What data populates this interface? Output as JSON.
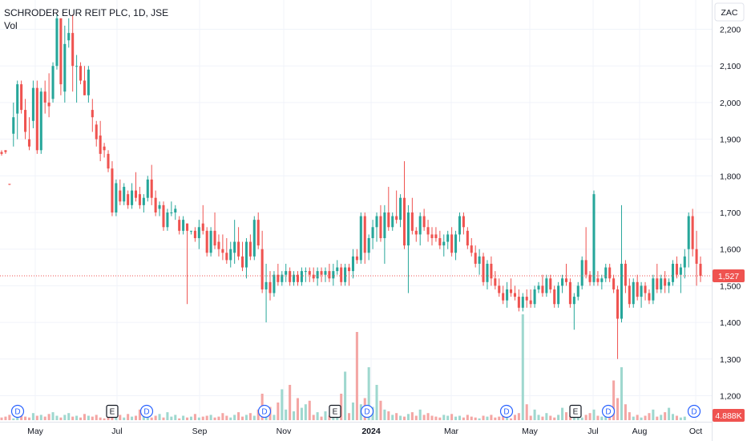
{
  "header": {
    "title": "SCHRODER EUR REIT PLC, 1D, JSE",
    "indicator": "Vol",
    "currency": "ZAC"
  },
  "price_scale": {
    "last_price_label": "1,527",
    "volume_label": "4.888K",
    "colors": {
      "up": "#26a69a",
      "down": "#ef5350",
      "vol_up": "#9fd8cf",
      "vol_down": "#f4a6a4",
      "price_tag": "#ef5350",
      "event_marker": "#2962ff"
    }
  },
  "chart_data": {
    "type": "candlestick",
    "title": "SCHRODER EUR REIT PLC, 1D, JSE",
    "ylabel": "ZAC",
    "ylim": [
      1120,
      2280
    ],
    "yticks": [
      {
        "value": 1200,
        "label": "1,200"
      },
      {
        "value": 1300,
        "label": "1,300"
      },
      {
        "value": 1400,
        "label": "1,400"
      },
      {
        "value": 1500,
        "label": "1,500"
      },
      {
        "value": 1600,
        "label": "1,600"
      },
      {
        "value": 1700,
        "label": "1,700"
      },
      {
        "value": 1800,
        "label": "1,800"
      },
      {
        "value": 1900,
        "label": "1,900"
      },
      {
        "value": 2000,
        "label": "2,000"
      },
      {
        "value": 2100,
        "label": "2,100"
      },
      {
        "value": 2200,
        "label": "2,200"
      }
    ],
    "xticks": [
      {
        "label": "May",
        "bold": false
      },
      {
        "label": "Jul",
        "bold": false
      },
      {
        "label": "Sep",
        "bold": false
      },
      {
        "label": "Nov",
        "bold": false
      },
      {
        "label": "2024",
        "bold": true
      },
      {
        "label": "Mar",
        "bold": false
      },
      {
        "label": "May",
        "bold": false
      },
      {
        "label": "Jul",
        "bold": false
      },
      {
        "label": "Aug",
        "bold": false
      },
      {
        "label": "Oct",
        "bold": false
      }
    ],
    "last_price": 1527,
    "last_volume_label": "4.888K",
    "events": [
      {
        "label": "D",
        "type": "dividend"
      },
      {
        "label": "E",
        "type": "earnings"
      },
      {
        "label": "D",
        "type": "dividend"
      },
      {
        "label": "D",
        "type": "dividend"
      },
      {
        "label": "E",
        "type": "earnings"
      },
      {
        "label": "D",
        "type": "dividend"
      },
      {
        "label": "D",
        "type": "dividend"
      },
      {
        "label": "E",
        "type": "earnings"
      },
      {
        "label": "D",
        "type": "dividend"
      },
      {
        "label": "D",
        "type": "dividend"
      }
    ],
    "candles": [
      [
        1865,
        1870,
        1855,
        1860
      ],
      [
        1870,
        1870,
        1860,
        1865
      ],
      [
        1778,
        1778,
        1775,
        1776
      ],
      [
        1915,
        2000,
        1880,
        1960
      ],
      [
        1970,
        2060,
        1900,
        2050
      ],
      [
        2050,
        2060,
        1970,
        1980
      ],
      [
        1980,
        2010,
        1900,
        1920
      ],
      [
        1900,
        1960,
        1870,
        1880
      ],
      [
        1950,
        2060,
        1930,
        2040
      ],
      [
        2040,
        2060,
        1860,
        1870
      ],
      [
        1870,
        2040,
        1860,
        2030
      ],
      [
        2030,
        2060,
        1970,
        2000
      ],
      [
        2000,
        2080,
        1960,
        1990
      ],
      [
        2010,
        2110,
        2000,
        2100
      ],
      [
        2100,
        2240,
        2090,
        2230
      ],
      [
        2230,
        2230,
        2020,
        2050
      ],
      [
        2030,
        2210,
        2000,
        2160
      ],
      [
        2170,
        2230,
        2150,
        2190
      ],
      [
        2190,
        2240,
        2030,
        2100
      ],
      [
        2100,
        2130,
        2000,
        2100
      ],
      [
        2100,
        2110,
        2050,
        2060
      ],
      [
        2060,
        2100,
        2020,
        2020
      ],
      [
        2020,
        2100,
        2000,
        2090
      ],
      [
        1980,
        2010,
        1920,
        1960
      ],
      [
        1940,
        1950,
        1880,
        1900
      ],
      [
        1910,
        1950,
        1840,
        1860
      ],
      [
        1880,
        1890,
        1850,
        1870
      ],
      [
        1860,
        1870,
        1810,
        1820
      ],
      [
        1820,
        1840,
        1690,
        1700
      ],
      [
        1700,
        1790,
        1690,
        1780
      ],
      [
        1760,
        1790,
        1720,
        1730
      ],
      [
        1730,
        1780,
        1720,
        1770
      ],
      [
        1750,
        1760,
        1710,
        1720
      ],
      [
        1720,
        1780,
        1710,
        1760
      ],
      [
        1760,
        1810,
        1730,
        1740
      ],
      [
        1750,
        1770,
        1710,
        1720
      ],
      [
        1720,
        1750,
        1700,
        1740
      ],
      [
        1740,
        1800,
        1730,
        1790
      ],
      [
        1790,
        1830,
        1720,
        1740
      ],
      [
        1740,
        1760,
        1690,
        1700
      ],
      [
        1710,
        1730,
        1690,
        1720
      ],
      [
        1720,
        1730,
        1650,
        1660
      ],
      [
        1660,
        1710,
        1650,
        1700
      ],
      [
        1700,
        1730,
        1690,
        1700
      ],
      [
        1700,
        1720,
        1680,
        1710
      ],
      [
        1680,
        1690,
        1640,
        1650
      ],
      [
        1650,
        1690,
        1640,
        1680
      ],
      [
        1670,
        1670,
        1450,
        1650
      ],
      [
        1650,
        1650,
        1640,
        1650
      ],
      [
        1650,
        1660,
        1620,
        1630
      ],
      [
        1630,
        1680,
        1600,
        1660
      ],
      [
        1670,
        1720,
        1640,
        1650
      ],
      [
        1650,
        1660,
        1580,
        1590
      ],
      [
        1590,
        1660,
        1580,
        1650
      ],
      [
        1650,
        1700,
        1600,
        1610
      ],
      [
        1620,
        1640,
        1580,
        1600
      ],
      [
        1600,
        1640,
        1570,
        1590
      ],
      [
        1590,
        1630,
        1560,
        1570
      ],
      [
        1570,
        1620,
        1550,
        1600
      ],
      [
        1590,
        1680,
        1560,
        1620
      ],
      [
        1620,
        1660,
        1570,
        1580
      ],
      [
        1580,
        1620,
        1540,
        1550
      ],
      [
        1550,
        1630,
        1520,
        1620
      ],
      [
        1620,
        1640,
        1570,
        1580
      ],
      [
        1580,
        1690,
        1570,
        1680
      ],
      [
        1680,
        1700,
        1600,
        1610
      ],
      [
        1600,
        1650,
        1480,
        1490
      ],
      [
        1490,
        1560,
        1400,
        1510
      ],
      [
        1510,
        1540,
        1460,
        1480
      ],
      [
        1480,
        1540,
        1470,
        1530
      ],
      [
        1530,
        1560,
        1500,
        1510
      ],
      [
        1510,
        1540,
        1500,
        1530
      ],
      [
        1530,
        1560,
        1510,
        1540
      ],
      [
        1540,
        1550,
        1500,
        1510
      ],
      [
        1510,
        1540,
        1500,
        1530
      ],
      [
        1530,
        1540,
        1500,
        1510
      ],
      [
        1510,
        1550,
        1500,
        1540
      ],
      [
        1540,
        1550,
        1510,
        1540
      ],
      [
        1540,
        1550,
        1510,
        1530
      ],
      [
        1530,
        1550,
        1510,
        1520
      ],
      [
        1520,
        1550,
        1500,
        1540
      ],
      [
        1540,
        1550,
        1510,
        1530
      ],
      [
        1530,
        1550,
        1510,
        1540
      ],
      [
        1540,
        1560,
        1510,
        1520
      ],
      [
        1520,
        1560,
        1500,
        1540
      ],
      [
        1540,
        1570,
        1530,
        1550
      ],
      [
        1550,
        1560,
        1500,
        1510
      ],
      [
        1510,
        1560,
        1500,
        1550
      ],
      [
        1550,
        1560,
        1500,
        1540
      ],
      [
        1540,
        1600,
        1520,
        1580
      ],
      [
        1580,
        1600,
        1560,
        1570
      ],
      [
        1570,
        1700,
        1560,
        1690
      ],
      [
        1690,
        1700,
        1560,
        1590
      ],
      [
        1590,
        1640,
        1570,
        1630
      ],
      [
        1630,
        1680,
        1600,
        1660
      ],
      [
        1660,
        1700,
        1620,
        1690
      ],
      [
        1690,
        1720,
        1620,
        1630
      ],
      [
        1630,
        1720,
        1560,
        1700
      ],
      [
        1700,
        1770,
        1650,
        1660
      ],
      [
        1660,
        1700,
        1650,
        1690
      ],
      [
        1690,
        1760,
        1670,
        1680
      ],
      [
        1680,
        1750,
        1660,
        1740
      ],
      [
        1740,
        1840,
        1600,
        1610
      ],
      [
        1610,
        1720,
        1480,
        1700
      ],
      [
        1700,
        1740,
        1640,
        1650
      ],
      [
        1650,
        1660,
        1620,
        1640
      ],
      [
        1640,
        1700,
        1610,
        1690
      ],
      [
        1690,
        1710,
        1650,
        1660
      ],
      [
        1660,
        1680,
        1620,
        1640
      ],
      [
        1640,
        1660,
        1610,
        1630
      ],
      [
        1640,
        1660,
        1620,
        1630
      ],
      [
        1630,
        1650,
        1600,
        1610
      ],
      [
        1610,
        1640,
        1580,
        1620
      ],
      [
        1620,
        1650,
        1600,
        1640
      ],
      [
        1640,
        1660,
        1580,
        1590
      ],
      [
        1590,
        1650,
        1570,
        1640
      ],
      [
        1640,
        1700,
        1620,
        1690
      ],
      [
        1690,
        1700,
        1640,
        1660
      ],
      [
        1650,
        1660,
        1600,
        1610
      ],
      [
        1610,
        1630,
        1580,
        1590
      ],
      [
        1590,
        1610,
        1550,
        1560
      ],
      [
        1560,
        1600,
        1530,
        1580
      ],
      [
        1580,
        1590,
        1500,
        1510
      ],
      [
        1510,
        1570,
        1490,
        1560
      ],
      [
        1560,
        1580,
        1500,
        1520
      ],
      [
        1520,
        1540,
        1490,
        1500
      ],
      [
        1500,
        1520,
        1470,
        1480
      ],
      [
        1480,
        1500,
        1450,
        1460
      ],
      [
        1460,
        1510,
        1440,
        1490
      ],
      [
        1490,
        1520,
        1470,
        1480
      ],
      [
        1480,
        1500,
        1460,
        1470
      ],
      [
        1470,
        1490,
        1430,
        1440
      ],
      [
        1440,
        1480,
        1430,
        1470
      ],
      [
        1470,
        1490,
        1440,
        1460
      ],
      [
        1460,
        1490,
        1440,
        1450
      ],
      [
        1450,
        1500,
        1440,
        1490
      ],
      [
        1490,
        1510,
        1480,
        1500
      ],
      [
        1500,
        1530,
        1470,
        1480
      ],
      [
        1480,
        1530,
        1470,
        1520
      ],
      [
        1520,
        1530,
        1480,
        1490
      ],
      [
        1490,
        1500,
        1440,
        1450
      ],
      [
        1450,
        1510,
        1440,
        1500
      ],
      [
        1500,
        1530,
        1480,
        1520
      ],
      [
        1520,
        1560,
        1500,
        1510
      ],
      [
        1510,
        1520,
        1440,
        1450
      ],
      [
        1450,
        1480,
        1380,
        1470
      ],
      [
        1470,
        1510,
        1460,
        1500
      ],
      [
        1500,
        1580,
        1490,
        1570
      ],
      [
        1570,
        1660,
        1520,
        1530
      ],
      [
        1530,
        1540,
        1500,
        1510
      ],
      [
        1510,
        1760,
        1500,
        1750
      ],
      [
        1520,
        1540,
        1500,
        1510
      ],
      [
        1510,
        1530,
        1490,
        1520
      ],
      [
        1520,
        1560,
        1510,
        1550
      ],
      [
        1550,
        1560,
        1510,
        1520
      ],
      [
        1520,
        1530,
        1480,
        1490
      ],
      [
        1490,
        1500,
        1300,
        1410
      ],
      [
        1410,
        1720,
        1400,
        1560
      ],
      [
        1560,
        1570,
        1480,
        1500
      ],
      [
        1500,
        1520,
        1440,
        1450
      ],
      [
        1450,
        1520,
        1440,
        1510
      ],
      [
        1510,
        1530,
        1460,
        1470
      ],
      [
        1470,
        1510,
        1440,
        1500
      ],
      [
        1500,
        1510,
        1460,
        1480
      ],
      [
        1480,
        1490,
        1450,
        1460
      ],
      [
        1460,
        1530,
        1450,
        1520
      ],
      [
        1520,
        1560,
        1480,
        1490
      ],
      [
        1490,
        1530,
        1480,
        1520
      ],
      [
        1520,
        1540,
        1480,
        1500
      ],
      [
        1500,
        1520,
        1480,
        1510
      ],
      [
        1510,
        1570,
        1500,
        1560
      ],
      [
        1560,
        1580,
        1520,
        1530
      ],
      [
        1530,
        1560,
        1480,
        1550
      ],
      [
        1550,
        1600,
        1520,
        1580
      ],
      [
        1600,
        1700,
        1550,
        1690
      ],
      [
        1690,
        1710,
        1580,
        1600
      ],
      [
        1600,
        1650,
        1500,
        1560
      ],
      [
        1560,
        1580,
        1510,
        1527
      ]
    ],
    "volume_profile": [
      3,
      4,
      6,
      2,
      5,
      7,
      4,
      3,
      8,
      5,
      6,
      4,
      7,
      9,
      5,
      3,
      6,
      8,
      4,
      5,
      3,
      7,
      5,
      4,
      6,
      3,
      2,
      5,
      4,
      8,
      6,
      3,
      7,
      4,
      5,
      12,
      6,
      4,
      3,
      5,
      7,
      3,
      9,
      4,
      6,
      2,
      5,
      3,
      4,
      7,
      3,
      4,
      5,
      6,
      3,
      4,
      8,
      5,
      3,
      6,
      9,
      4,
      6,
      8,
      5,
      12,
      30,
      8,
      15,
      6,
      20,
      35,
      12,
      40,
      10,
      25,
      14,
      18,
      22,
      6,
      9,
      4,
      10,
      5,
      7,
      15,
      30,
      55,
      8,
      20,
      100,
      18,
      25,
      60,
      15,
      40,
      22,
      12,
      10,
      6,
      8,
      5,
      4,
      7,
      9,
      5,
      12,
      6,
      8,
      5,
      4,
      3,
      6,
      5,
      7,
      4,
      5,
      3,
      6,
      4,
      3,
      2,
      5,
      4,
      6,
      3,
      4,
      5,
      3,
      2,
      6,
      8,
      120,
      18,
      5,
      12,
      6,
      4,
      8,
      5,
      3,
      6,
      14,
      9,
      5,
      7,
      4,
      3,
      6,
      8,
      12,
      5,
      4,
      7,
      10,
      45,
      25,
      60,
      18,
      9,
      4,
      6,
      3,
      5,
      8,
      12,
      4,
      6,
      9,
      14,
      7,
      5,
      3,
      4
    ]
  }
}
